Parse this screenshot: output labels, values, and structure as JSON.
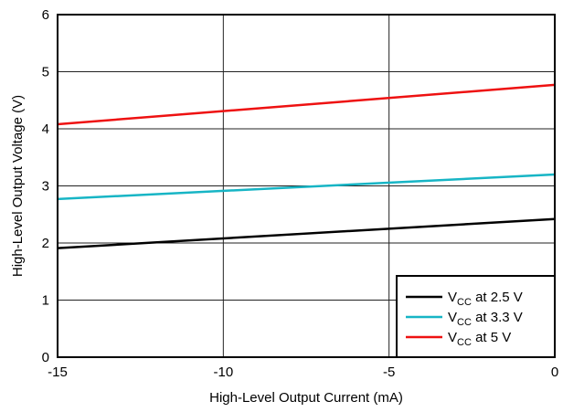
{
  "chart_data": {
    "type": "line",
    "title": "",
    "xlabel": "High-Level Output Current (mA)",
    "ylabel": "High-Level Output Voltage (V)",
    "xlim": [
      -15,
      0
    ],
    "ylim": [
      0,
      6
    ],
    "x_ticks": [
      -15,
      -10,
      -5,
      0
    ],
    "y_ticks": [
      0,
      1,
      2,
      3,
      4,
      5,
      6
    ],
    "x_tick_labels": [
      "-15",
      "-10",
      "-5",
      "0"
    ],
    "y_tick_labels": [
      "0",
      "1",
      "2",
      "3",
      "4",
      "5",
      "6"
    ],
    "grid": true,
    "legend_position": "bottom-right",
    "series": [
      {
        "name": "VCC at 2.5 V",
        "legend_main": "V",
        "legend_sub": "CC",
        "legend_rest": " at 2.5 V",
        "color": "#000000",
        "x": [
          -15,
          0
        ],
        "y": [
          1.91,
          2.42
        ]
      },
      {
        "name": "VCC at 3.3 V",
        "legend_main": "V",
        "legend_sub": "CC",
        "legend_rest": " at 3.3 V",
        "color": "#17b5c5",
        "x": [
          -15,
          0
        ],
        "y": [
          2.77,
          3.2
        ]
      },
      {
        "name": "VCC at 5 V",
        "legend_main": "V",
        "legend_sub": "CC",
        "legend_rest": " at 5 V",
        "color": "#ee1111",
        "x": [
          -15,
          0
        ],
        "y": [
          4.08,
          4.77
        ]
      }
    ]
  }
}
